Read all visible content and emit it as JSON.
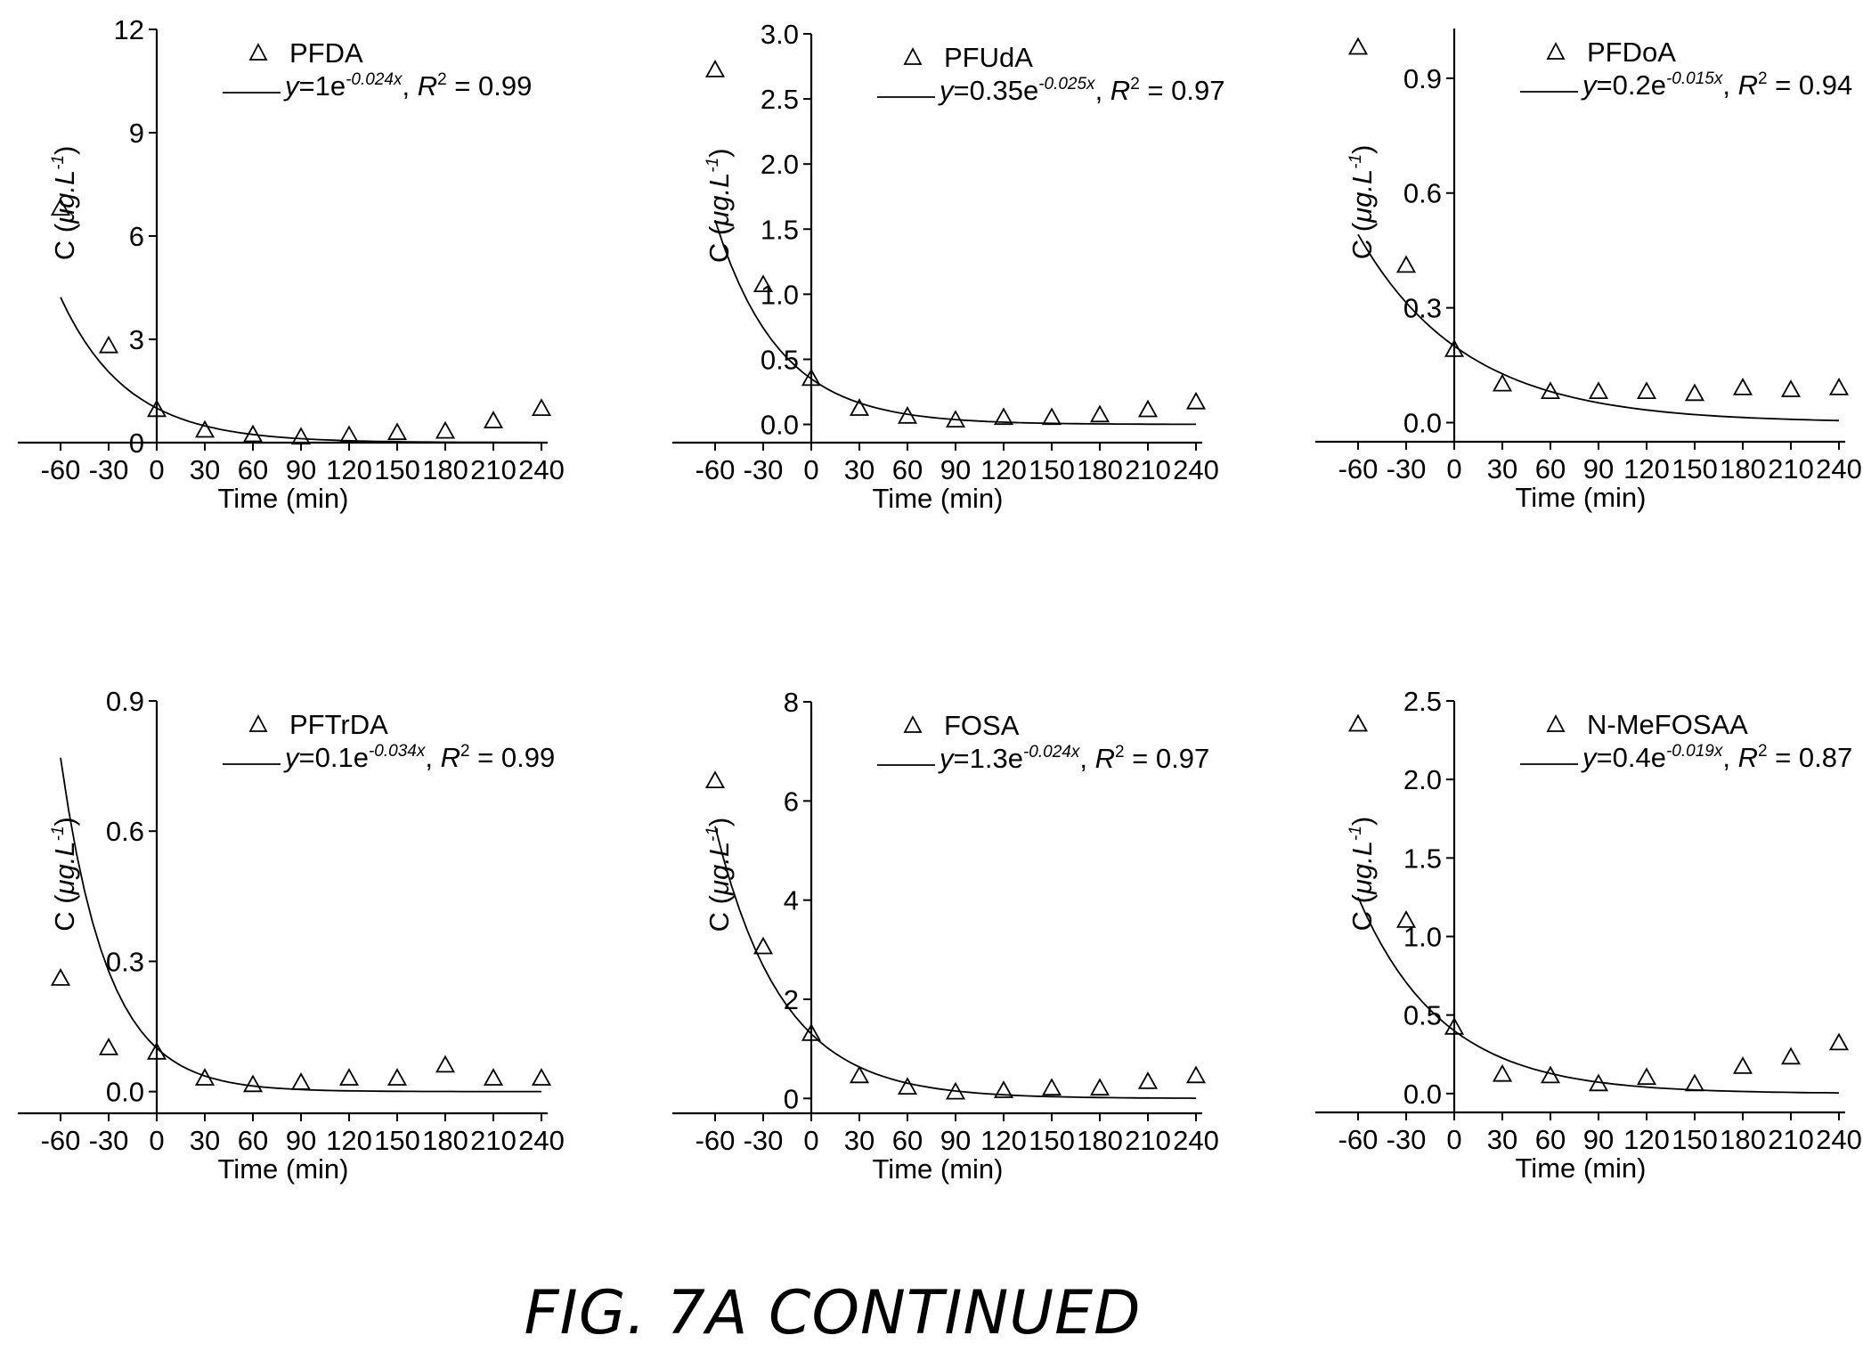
{
  "figure": {
    "caption": "FIG. 7A CONTINUED"
  },
  "chart_data": [
    {
      "type": "scatter",
      "title": "PFDA",
      "xlabel": "Time (min)",
      "ylabel": "C (μg.L⁻¹)",
      "xticks": [
        -60,
        -30,
        0,
        30,
        60,
        90,
        120,
        150,
        180,
        210,
        240
      ],
      "xlim": [
        -60,
        240
      ],
      "ylim": [
        0,
        12
      ],
      "yticks": [
        "0",
        "3",
        "6",
        "9",
        "12"
      ],
      "ytick_values": [
        0,
        3,
        6,
        9,
        12
      ],
      "legend_location": "top-right",
      "series": [
        {
          "name": "PFDA",
          "marker": "triangle",
          "x": [
            -60,
            -30,
            0,
            30,
            60,
            90,
            120,
            150,
            180,
            210,
            240
          ],
          "y": [
            6.8,
            2.8,
            0.95,
            0.35,
            0.22,
            0.15,
            0.2,
            0.28,
            0.32,
            0.62,
            0.98
          ]
        },
        {
          "name": "fit",
          "type": "line",
          "equation_parts": {
            "lhs": "y",
            "eq": "=",
            "coef": "1",
            "base": "e",
            "exp": "-0.024x",
            "r2_label": "R",
            "r2_sup": "2",
            "r2_value": " = 0.99"
          },
          "fit": {
            "a": 1,
            "b": -0.024
          }
        }
      ]
    },
    {
      "type": "scatter",
      "title": "PFUdA",
      "xlabel": "Time (min)",
      "ylabel": "C (μg.L⁻¹)",
      "xticks": [
        -60,
        -30,
        0,
        30,
        60,
        90,
        120,
        150,
        180,
        210,
        240
      ],
      "xlim": [
        -60,
        240
      ],
      "ylim": [
        -0.14,
        3.0
      ],
      "yticks": [
        "0.0",
        "0.5",
        "1.0",
        "1.5",
        "2.0",
        "2.5",
        "3.0"
      ],
      "ytick_values": [
        0,
        0.5,
        1.0,
        1.5,
        2.0,
        2.5,
        3.0
      ],
      "legend_location": "top-right",
      "series": [
        {
          "name": "PFUdA",
          "marker": "triangle",
          "x": [
            -60,
            -30,
            0,
            30,
            60,
            90,
            120,
            150,
            180,
            210,
            240
          ],
          "y": [
            2.72,
            1.07,
            0.35,
            0.12,
            0.06,
            0.03,
            0.05,
            0.05,
            0.07,
            0.11,
            0.17
          ]
        },
        {
          "name": "fit",
          "type": "line",
          "equation_parts": {
            "lhs": "y",
            "eq": "=",
            "coef": "0.35",
            "base": "e",
            "exp": "-0.025x",
            "r2_label": "R",
            "r2_sup": "2",
            "r2_value": " = 0.97"
          },
          "fit": {
            "a": 0.35,
            "b": -0.025
          }
        }
      ]
    },
    {
      "type": "scatter",
      "title": "PFDoA",
      "xlabel": "Time (min)",
      "ylabel": "C (μg.L⁻¹)",
      "xticks": [
        -60,
        -30,
        0,
        30,
        60,
        90,
        120,
        150,
        180,
        210,
        240
      ],
      "xlim": [
        -60,
        240
      ],
      "ylim": [
        -0.05,
        1.03
      ],
      "yticks": [
        "0.0",
        "0.3",
        "0.6",
        "0.9"
      ],
      "ytick_values": [
        0,
        0.3,
        0.6,
        0.9
      ],
      "legend_location": "top-right",
      "series": [
        {
          "name": "PFDoA",
          "marker": "triangle",
          "x": [
            -60,
            -30,
            0,
            30,
            60,
            90,
            120,
            150,
            180,
            210,
            240
          ],
          "y": [
            0.98,
            0.41,
            0.19,
            0.1,
            0.08,
            0.08,
            0.08,
            0.075,
            0.09,
            0.085,
            0.09
          ]
        },
        {
          "name": "fit",
          "type": "line",
          "equation_parts": {
            "lhs": "y",
            "eq": "=",
            "coef": "0.2",
            "base": "e",
            "exp": "-0.015x",
            "r2_label": "R",
            "r2_sup": "2",
            "r2_value": " = 0.94"
          },
          "fit": {
            "a": 0.2,
            "b": -0.015
          }
        }
      ]
    },
    {
      "type": "scatter",
      "title": "PFTrDA",
      "xlabel": "Time (min)",
      "ylabel": "C (μg.L⁻¹)",
      "xticks": [
        -60,
        -30,
        0,
        30,
        60,
        90,
        120,
        150,
        180,
        210,
        240
      ],
      "xlim": [
        -60,
        240
      ],
      "ylim": [
        -0.05,
        0.9
      ],
      "yticks": [
        "0.0",
        "0.3",
        "0.6",
        "0.9"
      ],
      "ytick_values": [
        0,
        0.3,
        0.6,
        0.9
      ],
      "legend_location": "top-right",
      "series": [
        {
          "name": "PFTrDA",
          "marker": "triangle",
          "x": [
            -60,
            -30,
            0,
            30,
            60,
            90,
            120,
            150,
            180,
            210,
            240
          ],
          "y": [
            0.26,
            0.1,
            0.09,
            0.03,
            0.015,
            0.02,
            0.03,
            0.03,
            0.06,
            0.03,
            0.03
          ]
        },
        {
          "name": "fit",
          "type": "line",
          "equation_parts": {
            "lhs": "y",
            "eq": "=",
            "coef": "0.1",
            "base": "e",
            "exp": "-0.034x",
            "r2_label": "R",
            "r2_sup": "2",
            "r2_value": " = 0.99"
          },
          "fit": {
            "a": 0.1,
            "b": -0.034
          }
        }
      ]
    },
    {
      "type": "scatter",
      "title": "FOSA",
      "xlabel": "Time (min)",
      "ylabel": "C (μg.L⁻¹)",
      "xticks": [
        -60,
        -30,
        0,
        30,
        60,
        90,
        120,
        150,
        180,
        210,
        240
      ],
      "xlim": [
        -60,
        240
      ],
      "ylim": [
        -0.3,
        8
      ],
      "yticks": [
        "0",
        "2",
        "4",
        "6",
        "8"
      ],
      "ytick_values": [
        0,
        2,
        4,
        6,
        8
      ],
      "legend_location": "top-right",
      "series": [
        {
          "name": "FOSA",
          "marker": "triangle",
          "x": [
            -60,
            -30,
            0,
            30,
            60,
            90,
            120,
            150,
            180,
            210,
            240
          ],
          "y": [
            6.4,
            3.05,
            1.3,
            0.45,
            0.22,
            0.12,
            0.15,
            0.2,
            0.2,
            0.33,
            0.45
          ]
        },
        {
          "name": "fit",
          "type": "line",
          "equation_parts": {
            "lhs": "y",
            "eq": "=",
            "coef": "1.3",
            "base": "e",
            "exp": "-0.024x",
            "r2_label": "R",
            "r2_sup": "2",
            "r2_value": " = 0.97"
          },
          "fit": {
            "a": 1.3,
            "b": -0.024
          }
        }
      ]
    },
    {
      "type": "scatter",
      "title": "N-MeFOSAA",
      "xlabel": "Time (min)",
      "ylabel": "C (μg.L⁻¹)",
      "xticks": [
        -60,
        -30,
        0,
        30,
        60,
        90,
        120,
        150,
        180,
        210,
        240
      ],
      "xlim": [
        -60,
        240
      ],
      "ylim": [
        -0.12,
        2.5
      ],
      "yticks": [
        "0.0",
        "0.5",
        "1.0",
        "1.5",
        "2.0",
        "2.5"
      ],
      "ytick_values": [
        0,
        0.5,
        1.0,
        1.5,
        2.0,
        2.5
      ],
      "legend_location": "top-right",
      "series": [
        {
          "name": "N-MeFOSAA",
          "marker": "triangle",
          "x": [
            -60,
            -30,
            0,
            30,
            60,
            90,
            120,
            150,
            180,
            210,
            240
          ],
          "y": [
            2.35,
            1.1,
            0.42,
            0.12,
            0.11,
            0.06,
            0.1,
            0.06,
            0.17,
            0.23,
            0.32
          ]
        },
        {
          "name": "fit",
          "type": "line",
          "equation_parts": {
            "lhs": "y",
            "eq": "=",
            "coef": "0.4",
            "base": "e",
            "exp": "-0.019x",
            "r2_label": "R",
            "r2_sup": "2",
            "r2_value": " = 0.87"
          },
          "fit": {
            "a": 0.4,
            "b": -0.019
          }
        }
      ]
    }
  ]
}
